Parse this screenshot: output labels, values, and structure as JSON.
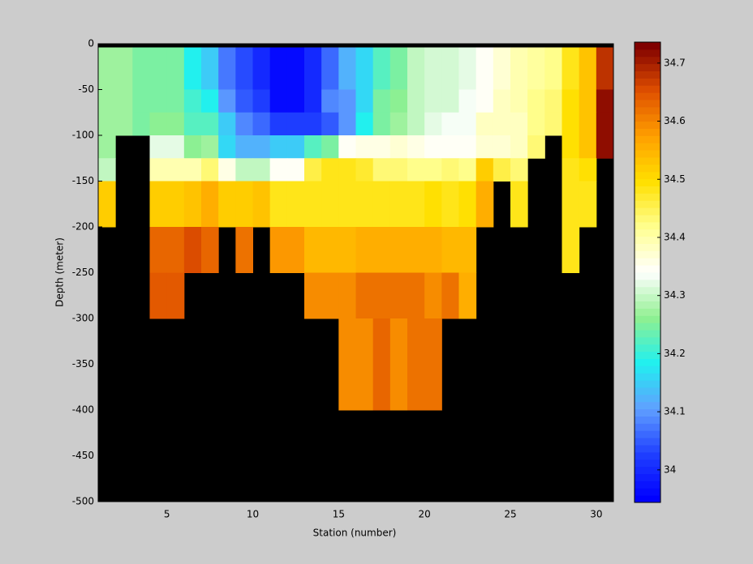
{
  "chart_data": {
    "type": "heatmap",
    "xlabel": "Station (number)",
    "ylabel": "Depth (meter)",
    "xlim": [
      1,
      31
    ],
    "ylim": [
      -500,
      0
    ],
    "xticks": [
      5,
      10,
      15,
      20,
      25,
      30
    ],
    "yticks": [
      0,
      -50,
      -100,
      -150,
      -200,
      -250,
      -300,
      -350,
      -400,
      -450,
      -500
    ],
    "x_edges": [
      1,
      2,
      3,
      4,
      5,
      6,
      7,
      8,
      9,
      10,
      11,
      12,
      13,
      14,
      15,
      16,
      17,
      18,
      19,
      20,
      21,
      22,
      23,
      24,
      25,
      26,
      27,
      28,
      29,
      30,
      31
    ],
    "y_edges": [
      -4,
      -50,
      -75,
      -100,
      -125,
      -150,
      -200,
      -250,
      -300,
      -400
    ],
    "missing_color": "#000000",
    "clim": [
      33.944,
      34.736
    ],
    "cticks": [
      34,
      34.1,
      34.2,
      34.3,
      34.4,
      34.5,
      34.6,
      34.7
    ],
    "colormap": [
      "#0000ff",
      "#2040ff",
      "#60a0ff",
      "#20f0f0",
      "#90f090",
      "#ffffff",
      "#ffff90",
      "#ffe000",
      "#ffa000",
      "#e05000",
      "#800000"
    ],
    "z": [
      [
        34.27,
        34.27,
        34.25,
        34.25,
        34.24,
        34.18,
        34.14,
        34.07,
        34.03,
        33.99,
        33.96,
        33.96,
        34.0,
        34.06,
        34.12,
        34.16,
        34.22,
        34.25,
        34.29,
        34.31,
        34.31,
        34.32,
        34.35,
        34.37,
        34.4,
        34.41,
        34.42,
        34.48,
        34.54,
        34.69
      ],
      [
        34.27,
        34.27,
        34.25,
        34.25,
        34.24,
        34.21,
        34.18,
        34.1,
        34.05,
        34.02,
        33.96,
        33.96,
        34.0,
        34.08,
        34.1,
        34.16,
        34.24,
        34.26,
        34.3,
        34.31,
        34.31,
        34.33,
        34.35,
        34.38,
        34.4,
        34.42,
        34.43,
        34.5,
        34.54,
        34.72
      ],
      [
        34.27,
        34.27,
        34.25,
        34.26,
        34.26,
        34.22,
        34.22,
        34.14,
        34.08,
        34.06,
        34.02,
        34.02,
        34.02,
        34.05,
        34.1,
        34.18,
        34.24,
        34.27,
        34.3,
        34.32,
        34.33,
        34.33,
        34.38,
        34.38,
        34.39,
        34.42,
        34.43,
        34.5,
        34.54,
        34.72
      ],
      [
        34.27,
        null,
        null,
        34.32,
        34.32,
        34.26,
        34.27,
        34.16,
        34.12,
        34.12,
        34.14,
        34.14,
        34.22,
        34.25,
        34.34,
        34.36,
        34.36,
        34.37,
        34.36,
        34.34,
        34.34,
        34.35,
        34.37,
        34.37,
        34.39,
        34.44,
        null,
        34.5,
        34.53,
        34.72
      ],
      [
        34.3,
        null,
        null,
        34.4,
        34.4,
        34.4,
        34.43,
        34.36,
        34.3,
        34.3,
        34.34,
        34.34,
        34.46,
        34.48,
        34.48,
        34.47,
        34.44,
        34.43,
        34.42,
        34.42,
        34.43,
        34.42,
        34.52,
        34.46,
        34.44,
        null,
        null,
        34.48,
        34.5,
        null
      ],
      [
        34.52,
        null,
        null,
        34.52,
        34.52,
        34.54,
        34.56,
        34.52,
        34.52,
        34.53,
        34.49,
        34.49,
        34.49,
        34.49,
        34.49,
        34.48,
        34.48,
        34.48,
        34.49,
        34.5,
        34.49,
        34.5,
        34.56,
        null,
        34.48,
        null,
        null,
        34.49,
        34.48,
        null
      ],
      [
        null,
        null,
        null,
        34.64,
        34.64,
        34.66,
        34.64,
        null,
        34.62,
        null,
        34.58,
        34.58,
        34.55,
        34.55,
        34.55,
        34.56,
        34.56,
        34.56,
        34.56,
        34.56,
        34.55,
        34.55,
        null,
        null,
        null,
        null,
        null,
        34.49,
        null,
        null
      ],
      [
        null,
        null,
        null,
        34.65,
        34.65,
        null,
        null,
        null,
        null,
        null,
        null,
        null,
        34.6,
        34.6,
        34.6,
        34.62,
        34.62,
        34.62,
        34.62,
        34.6,
        34.62,
        34.56,
        null,
        null,
        null,
        null,
        null,
        null,
        null,
        null
      ],
      [
        null,
        null,
        null,
        null,
        null,
        null,
        null,
        null,
        null,
        null,
        null,
        null,
        null,
        null,
        34.6,
        34.6,
        34.63,
        34.6,
        34.62,
        34.62,
        null,
        null,
        null,
        null,
        null,
        null,
        null,
        null,
        null,
        null
      ]
    ]
  }
}
